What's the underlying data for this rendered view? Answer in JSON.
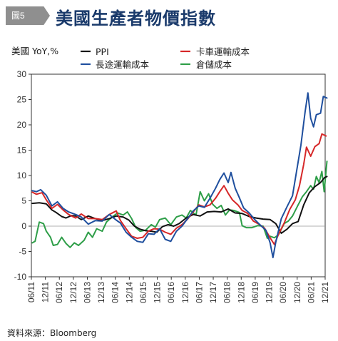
{
  "header": {
    "badge": "圖5",
    "title": "美國生產者物價指數"
  },
  "source": "資料來源：Bloomberg",
  "colors": {
    "title": "#1a3a6b",
    "badge": "#8f8f8f"
  },
  "chart_data": {
    "type": "line",
    "title": "美國生產者物價指數",
    "ylabel": "美國 YoY,%",
    "ylim": [
      -10,
      30
    ],
    "yticks": [
      -10,
      -5,
      0,
      5,
      10,
      15,
      20,
      25,
      30
    ],
    "x_start": "2011-06",
    "x_end": "2021-12",
    "xticks": [
      "06/11",
      "12/11",
      "06/12",
      "12/12",
      "06/13",
      "12/13",
      "06/14",
      "12/14",
      "06/15",
      "12/15",
      "06/16",
      "12/16",
      "06/17",
      "12/17",
      "06/18",
      "12/18",
      "06/19",
      "12/19",
      "06/20",
      "12/20",
      "06/21",
      "12/21"
    ],
    "grid": false,
    "legend": "top",
    "series": [
      {
        "name": "PPI",
        "color": "#111111",
        "points": [
          [
            2011.45,
            4.5
          ],
          [
            2011.7,
            4.6
          ],
          [
            2011.95,
            4.4
          ],
          [
            2012.15,
            3.2
          ],
          [
            2012.3,
            2.7
          ],
          [
            2012.5,
            1.9
          ],
          [
            2012.65,
            1.6
          ],
          [
            2012.85,
            2.1
          ],
          [
            2013.0,
            2.0
          ],
          [
            2013.2,
            1.3
          ],
          [
            2013.45,
            2.0
          ],
          [
            2013.7,
            1.5
          ],
          [
            2013.95,
            1.1
          ],
          [
            2014.2,
            1.5
          ],
          [
            2014.45,
            2.0
          ],
          [
            2014.7,
            1.8
          ],
          [
            2014.9,
            1.2
          ],
          [
            2015.1,
            0.0
          ],
          [
            2015.3,
            -0.6
          ],
          [
            2015.5,
            -0.9
          ],
          [
            2015.7,
            -1.0
          ],
          [
            2015.9,
            -1.2
          ],
          [
            2016.1,
            -0.1
          ],
          [
            2016.3,
            0.3
          ],
          [
            2016.5,
            0.0
          ],
          [
            2016.7,
            0.5
          ],
          [
            2016.95,
            1.6
          ],
          [
            2017.2,
            2.3
          ],
          [
            2017.45,
            2.0
          ],
          [
            2017.7,
            2.8
          ],
          [
            2017.95,
            2.9
          ],
          [
            2018.2,
            2.8
          ],
          [
            2018.45,
            3.4
          ],
          [
            2018.7,
            2.6
          ],
          [
            2018.95,
            2.5
          ],
          [
            2019.2,
            1.9
          ],
          [
            2019.45,
            1.6
          ],
          [
            2019.7,
            1.4
          ],
          [
            2019.95,
            1.3
          ],
          [
            2020.15,
            0.5
          ],
          [
            2020.35,
            -1.4
          ],
          [
            2020.55,
            -0.6
          ],
          [
            2020.75,
            0.5
          ],
          [
            2020.95,
            0.9
          ],
          [
            2021.15,
            4.2
          ],
          [
            2021.35,
            6.6
          ],
          [
            2021.55,
            7.8
          ],
          [
            2021.75,
            8.6
          ],
          [
            2021.9,
            9.6
          ],
          [
            2021.98,
            9.8
          ]
        ]
      },
      {
        "name": "卡車運輸成本",
        "color": "#d62728",
        "points": [
          [
            2011.45,
            6.7
          ],
          [
            2011.6,
            6.3
          ],
          [
            2011.8,
            6.6
          ],
          [
            2011.95,
            5.2
          ],
          [
            2012.15,
            3.5
          ],
          [
            2012.35,
            4.3
          ],
          [
            2012.55,
            3.2
          ],
          [
            2012.75,
            2.3
          ],
          [
            2013.0,
            1.6
          ],
          [
            2013.2,
            2.4
          ],
          [
            2013.45,
            1.5
          ],
          [
            2013.7,
            1.5
          ],
          [
            2013.95,
            1.3
          ],
          [
            2014.2,
            2.3
          ],
          [
            2014.45,
            3.0
          ],
          [
            2014.6,
            1.1
          ],
          [
            2014.8,
            -0.5
          ],
          [
            2015.0,
            -2.0
          ],
          [
            2015.2,
            -2.4
          ],
          [
            2015.4,
            -2.2
          ],
          [
            2015.6,
            -1.0
          ],
          [
            2015.8,
            -0.5
          ],
          [
            2016.0,
            -0.6
          ],
          [
            2016.2,
            -1.2
          ],
          [
            2016.4,
            -1.6
          ],
          [
            2016.6,
            -0.4
          ],
          [
            2016.8,
            0.3
          ],
          [
            2017.0,
            1.4
          ],
          [
            2017.2,
            2.8
          ],
          [
            2017.4,
            4.2
          ],
          [
            2017.6,
            3.8
          ],
          [
            2017.8,
            4.2
          ],
          [
            2018.0,
            5.5
          ],
          [
            2018.15,
            6.8
          ],
          [
            2018.3,
            8.0
          ],
          [
            2018.45,
            6.5
          ],
          [
            2018.6,
            5.2
          ],
          [
            2018.8,
            4.2
          ],
          [
            2018.95,
            3.1
          ],
          [
            2019.15,
            2.5
          ],
          [
            2019.35,
            1.0
          ],
          [
            2019.55,
            0.4
          ],
          [
            2019.75,
            -0.4
          ],
          [
            2019.95,
            -2.3
          ],
          [
            2020.1,
            -3.6
          ],
          [
            2020.25,
            -1.6
          ],
          [
            2020.45,
            0.6
          ],
          [
            2020.65,
            3.3
          ],
          [
            2020.85,
            5.2
          ],
          [
            2021.0,
            8.0
          ],
          [
            2021.15,
            12.2
          ],
          [
            2021.25,
            15.6
          ],
          [
            2021.4,
            13.8
          ],
          [
            2021.55,
            15.7
          ],
          [
            2021.7,
            16.3
          ],
          [
            2021.8,
            18.2
          ],
          [
            2021.95,
            17.8
          ]
        ]
      },
      {
        "name": "長途運輸成本",
        "color": "#1f4f9e",
        "points": [
          [
            2011.45,
            7.0
          ],
          [
            2011.6,
            6.8
          ],
          [
            2011.75,
            7.2
          ],
          [
            2011.95,
            6.1
          ],
          [
            2012.15,
            4.0
          ],
          [
            2012.35,
            4.8
          ],
          [
            2012.55,
            3.5
          ],
          [
            2012.75,
            2.8
          ],
          [
            2013.0,
            2.3
          ],
          [
            2013.2,
            1.8
          ],
          [
            2013.45,
            0.4
          ],
          [
            2013.7,
            1.1
          ],
          [
            2013.95,
            1.0
          ],
          [
            2014.2,
            2.3
          ],
          [
            2014.45,
            1.2
          ],
          [
            2014.6,
            0.6
          ],
          [
            2014.8,
            -1.2
          ],
          [
            2015.0,
            -2.2
          ],
          [
            2015.2,
            -3.0
          ],
          [
            2015.4,
            -3.2
          ],
          [
            2015.6,
            -1.5
          ],
          [
            2015.8,
            -1.6
          ],
          [
            2016.0,
            -0.5
          ],
          [
            2016.2,
            -2.6
          ],
          [
            2016.4,
            -3.0
          ],
          [
            2016.6,
            -1.0
          ],
          [
            2016.8,
            0.0
          ],
          [
            2017.0,
            1.5
          ],
          [
            2017.2,
            3.0
          ],
          [
            2017.4,
            4.0
          ],
          [
            2017.6,
            3.7
          ],
          [
            2017.8,
            5.5
          ],
          [
            2018.0,
            7.5
          ],
          [
            2018.15,
            9.2
          ],
          [
            2018.3,
            10.5
          ],
          [
            2018.45,
            8.6
          ],
          [
            2018.55,
            10.6
          ],
          [
            2018.7,
            7.5
          ],
          [
            2018.85,
            5.6
          ],
          [
            2019.0,
            3.6
          ],
          [
            2019.2,
            2.6
          ],
          [
            2019.4,
            1.3
          ],
          [
            2019.6,
            0.2
          ],
          [
            2019.8,
            -0.8
          ],
          [
            2019.95,
            -3.3
          ],
          [
            2020.05,
            -6.2
          ],
          [
            2020.15,
            -3.2
          ],
          [
            2020.35,
            1.5
          ],
          [
            2020.55,
            3.8
          ],
          [
            2020.75,
            6.0
          ],
          [
            2020.9,
            11.0
          ],
          [
            2021.05,
            16.0
          ],
          [
            2021.2,
            22.6
          ],
          [
            2021.3,
            26.3
          ],
          [
            2021.4,
            21.3
          ],
          [
            2021.5,
            19.6
          ],
          [
            2021.6,
            22.0
          ],
          [
            2021.75,
            22.3
          ],
          [
            2021.85,
            25.6
          ],
          [
            2021.98,
            25.3
          ]
        ]
      },
      {
        "name": "倉儲成本",
        "color": "#2e9e48",
        "points": [
          [
            2011.45,
            -3.3
          ],
          [
            2011.55,
            -3.0
          ],
          [
            2011.7,
            0.8
          ],
          [
            2011.85,
            0.5
          ],
          [
            2011.95,
            -1.0
          ],
          [
            2012.1,
            -2.2
          ],
          [
            2012.2,
            -3.8
          ],
          [
            2012.35,
            -3.6
          ],
          [
            2012.5,
            -2.2
          ],
          [
            2012.65,
            -3.4
          ],
          [
            2012.8,
            -4.2
          ],
          [
            2012.95,
            -3.3
          ],
          [
            2013.1,
            -3.8
          ],
          [
            2013.3,
            -2.8
          ],
          [
            2013.45,
            -1.2
          ],
          [
            2013.6,
            -2.2
          ],
          [
            2013.75,
            -0.5
          ],
          [
            2013.95,
            -1.0
          ],
          [
            2014.1,
            0.8
          ],
          [
            2014.3,
            1.8
          ],
          [
            2014.5,
            2.6
          ],
          [
            2014.7,
            2.2
          ],
          [
            2014.85,
            2.8
          ],
          [
            2015.0,
            1.5
          ],
          [
            2015.15,
            -0.3
          ],
          [
            2015.3,
            -1.0
          ],
          [
            2015.5,
            -0.8
          ],
          [
            2015.7,
            0.3
          ],
          [
            2015.85,
            -0.2
          ],
          [
            2016.0,
            1.3
          ],
          [
            2016.2,
            1.6
          ],
          [
            2016.4,
            0.3
          ],
          [
            2016.6,
            1.8
          ],
          [
            2016.8,
            2.2
          ],
          [
            2016.95,
            1.6
          ],
          [
            2017.1,
            3.1
          ],
          [
            2017.3,
            2.2
          ],
          [
            2017.45,
            6.8
          ],
          [
            2017.6,
            5.0
          ],
          [
            2017.75,
            6.4
          ],
          [
            2017.9,
            4.3
          ],
          [
            2018.05,
            3.5
          ],
          [
            2018.2,
            4.1
          ],
          [
            2018.35,
            2.2
          ],
          [
            2018.5,
            3.2
          ],
          [
            2018.65,
            3.1
          ],
          [
            2018.85,
            2.7
          ],
          [
            2018.95,
            0.1
          ],
          [
            2019.1,
            -0.3
          ],
          [
            2019.3,
            -0.3
          ],
          [
            2019.5,
            0.1
          ],
          [
            2019.7,
            0.0
          ],
          [
            2019.85,
            -2.4
          ],
          [
            2019.95,
            -2.0
          ],
          [
            2020.1,
            -2.3
          ],
          [
            2020.25,
            -1.7
          ],
          [
            2020.45,
            0.5
          ],
          [
            2020.6,
            1.0
          ],
          [
            2020.75,
            2.0
          ],
          [
            2020.95,
            4.2
          ],
          [
            2021.1,
            5.8
          ],
          [
            2021.25,
            6.8
          ],
          [
            2021.4,
            8.0
          ],
          [
            2021.5,
            7.3
          ],
          [
            2021.6,
            9.8
          ],
          [
            2021.7,
            8.6
          ],
          [
            2021.8,
            10.8
          ],
          [
            2021.88,
            6.8
          ],
          [
            2021.98,
            12.8
          ]
        ]
      }
    ]
  }
}
